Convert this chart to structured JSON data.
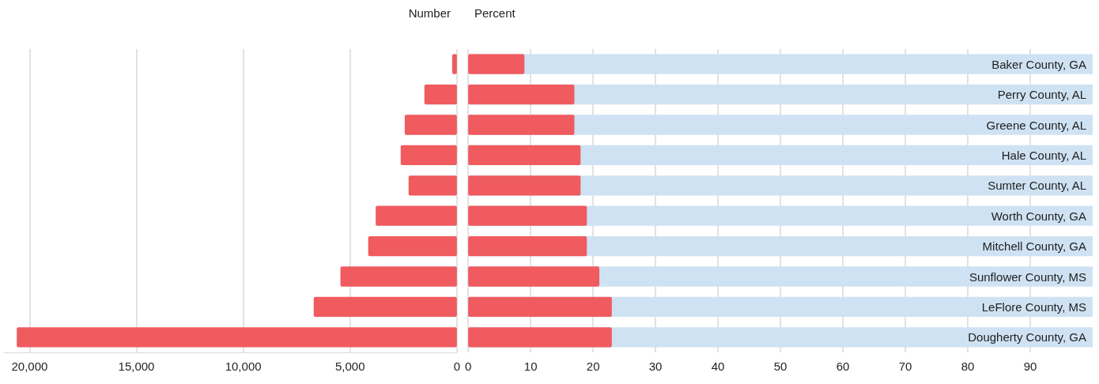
{
  "chart_data": [
    {
      "type": "bar",
      "title": "Number",
      "orientation": "horizontal",
      "categories": [
        null,
        null,
        null,
        null,
        null,
        null,
        null,
        null,
        null,
        null
      ],
      "values": [
        220,
        1520,
        2440,
        2630,
        2260,
        3800,
        4150,
        5450,
        6700,
        20600
      ],
      "color": "#ef5b5f",
      "xlim": [
        21200,
        0
      ],
      "xticks": [
        {
          "value": 20000,
          "label": "20,000"
        },
        {
          "value": 15000,
          "label": "15,000"
        },
        {
          "value": 10000,
          "label": "10,000"
        },
        {
          "value": 5000,
          "label": "5,000"
        },
        0
      ],
      "grid": "x",
      "tick_labels": "x"
    },
    {
      "type": "bar",
      "title": "Percent",
      "orientation": "horizontal",
      "categories": [
        "Baker County, GA",
        "Perry County, AL",
        "Greene County, AL",
        "Hale County, AL",
        "Sumter County, AL",
        "Worth County, GA",
        "Mitchell County, GA",
        "Sunflower County, MS",
        "LeFlore County, MS",
        "Dougherty County, GA"
      ],
      "values": [
        9,
        17,
        17,
        18,
        18,
        19,
        19,
        21,
        23,
        23
      ],
      "color": "#ef5b5f",
      "xlim": [
        0,
        100
      ],
      "xticks": [
        0,
        10,
        20,
        30,
        40,
        50,
        60,
        70,
        80,
        90
      ],
      "grid": "x"
    }
  ]
}
